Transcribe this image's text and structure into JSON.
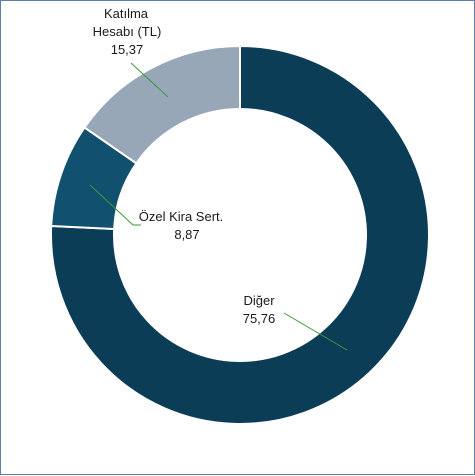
{
  "chart_data": {
    "type": "pie",
    "variant": "donut",
    "title": "",
    "series": [
      {
        "slices": [
          {
            "label": "Diğer",
            "value_label": "75,76",
            "value": 75.76,
            "color": "#0b3d57"
          },
          {
            "label": "Özel Kira Sert.",
            "value_label": "8,87",
            "value": 8.87,
            "color": "#11506e"
          },
          {
            "label_lines": [
              "Katılma",
              "Hesabı (TL)"
            ],
            "label": "Katılma Hesabı (TL)",
            "value_label": "15,37",
            "value": 15.37,
            "color": "#97a7b8"
          }
        ]
      }
    ],
    "start_angle_deg": 0,
    "direction": "clockwise",
    "slice_border_color": "#ffffff",
    "leader_line_color": "#3a9a3a"
  }
}
